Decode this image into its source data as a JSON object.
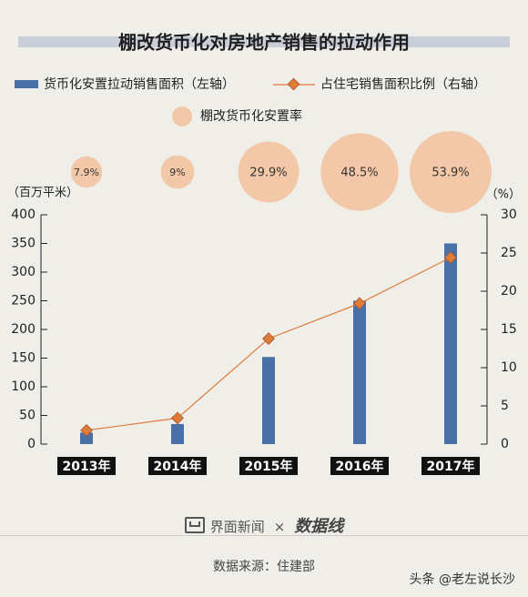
{
  "chart_data": {
    "type": "bar",
    "title": "棚改货币化对房地产销售的拉动作用",
    "categories": [
      "2013年",
      "2014年",
      "2015年",
      "2016年",
      "2017年"
    ],
    "y_left_unit": "（百万平米）",
    "y_right_unit": "（%）",
    "y_left_range": [
      0,
      400
    ],
    "y_left_ticks": [
      0,
      50,
      100,
      150,
      200,
      250,
      300,
      350,
      400
    ],
    "y_right_range": [
      0,
      30
    ],
    "y_right_ticks": [
      0,
      5,
      10,
      15,
      20,
      25,
      30
    ],
    "series": [
      {
        "name": "货币化安置拉动销售面积（左轴）",
        "kind": "bar",
        "axis": "left",
        "color": "#4a70a8",
        "values": [
          20,
          35,
          152,
          250,
          350
        ]
      },
      {
        "name": "占住宅销售面积比例（右轴）",
        "kind": "line",
        "axis": "right",
        "color": "#e07b39",
        "values": [
          1.8,
          3.4,
          13.8,
          18.4,
          24.4
        ]
      },
      {
        "name": "棚改货币化安置率",
        "kind": "bubble",
        "color": "#f3c8a8",
        "values": [
          7.9,
          9,
          29.9,
          48.5,
          53.9
        ],
        "labels": [
          "7.9%",
          "9%",
          "29.9%",
          "48.5%",
          "53.9%"
        ]
      }
    ],
    "grid": false
  },
  "footer": {
    "brand_left": "界面新闻",
    "brand_times": "×",
    "brand_right": "数据线",
    "source": "数据来源：住建部",
    "credit": "头条 @老左说长沙"
  }
}
